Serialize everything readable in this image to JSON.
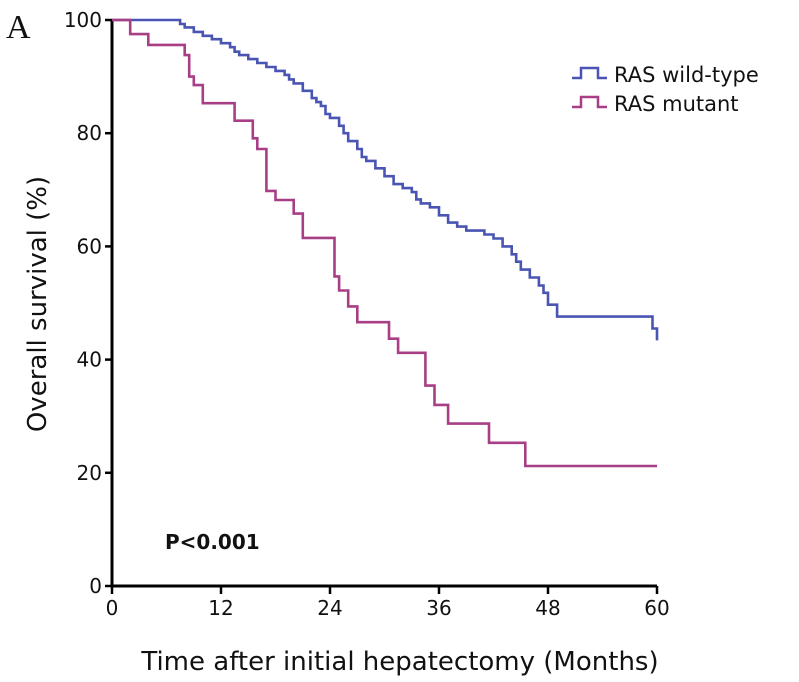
{
  "chart_data": {
    "type": "line",
    "step": true,
    "panel_label": "A",
    "xlabel": "Time after initial  hepatectomy (Months)",
    "ylabel": "Overall survival (%)",
    "xlim": [
      0,
      60
    ],
    "ylim": [
      0,
      100
    ],
    "xticks": [
      "0",
      "12",
      "24",
      "36",
      "48",
      "60"
    ],
    "yticks": [
      "0",
      "20",
      "40",
      "60",
      "80",
      "100"
    ],
    "grid": false,
    "legend_position": "top-right",
    "annotation": "P<0.001",
    "series": [
      {
        "name": "RAS wild-type",
        "color": "#4a55b3",
        "points": [
          [
            0,
            100
          ],
          [
            7,
            100
          ],
          [
            7.5,
            99.3
          ],
          [
            8,
            98.7
          ],
          [
            9,
            97.9
          ],
          [
            10,
            97.2
          ],
          [
            11,
            96.6
          ],
          [
            12,
            95.9
          ],
          [
            13,
            95.2
          ],
          [
            13.5,
            94.4
          ],
          [
            14,
            93.8
          ],
          [
            15,
            93.1
          ],
          [
            16,
            92.4
          ],
          [
            17,
            91.7
          ],
          [
            18,
            91
          ],
          [
            19,
            90.3
          ],
          [
            19.5,
            89.5
          ],
          [
            20,
            88.8
          ],
          [
            21,
            87.5
          ],
          [
            22,
            86.2
          ],
          [
            22.5,
            85.5
          ],
          [
            23,
            84.8
          ],
          [
            23.5,
            83.4
          ],
          [
            24,
            82.7
          ],
          [
            25,
            81.3
          ],
          [
            25.5,
            80
          ],
          [
            26,
            78.6
          ],
          [
            27,
            77.2
          ],
          [
            27.5,
            75.8
          ],
          [
            28,
            75.1
          ],
          [
            29,
            73.8
          ],
          [
            30,
            72.4
          ],
          [
            31,
            71
          ],
          [
            32,
            70.3
          ],
          [
            33,
            69.6
          ],
          [
            33.5,
            68.3
          ],
          [
            34,
            67.6
          ],
          [
            35,
            66.9
          ],
          [
            36,
            65.5
          ],
          [
            37,
            64.2
          ],
          [
            38,
            63.5
          ],
          [
            39,
            62.8
          ],
          [
            41,
            62.1
          ],
          [
            42,
            61.4
          ],
          [
            43,
            60
          ],
          [
            44,
            58.6
          ],
          [
            44.5,
            57.3
          ],
          [
            45,
            55.9
          ],
          [
            46,
            54.5
          ],
          [
            47,
            53.1
          ],
          [
            47.5,
            51.8
          ],
          [
            48,
            49.7
          ],
          [
            49,
            47.6
          ],
          [
            59,
            47.6
          ],
          [
            59.5,
            45.5
          ],
          [
            60,
            43.4
          ]
        ]
      },
      {
        "name": "RAS mutant",
        "color": "#a83f86",
        "points": [
          [
            0,
            100
          ],
          [
            2,
            97.5
          ],
          [
            4,
            95.6
          ],
          [
            8,
            93.8
          ],
          [
            8.5,
            90
          ],
          [
            9,
            88.5
          ],
          [
            10,
            85.3
          ],
          [
            13,
            85.3
          ],
          [
            13.5,
            82.2
          ],
          [
            15,
            82.2
          ],
          [
            15.5,
            79.1
          ],
          [
            16,
            77.2
          ],
          [
            17,
            69.8
          ],
          [
            18,
            68.2
          ],
          [
            20,
            65.8
          ],
          [
            21,
            61.5
          ],
          [
            24,
            61.5
          ],
          [
            24.5,
            54.7
          ],
          [
            25,
            52.2
          ],
          [
            26,
            49.4
          ],
          [
            27,
            46.6
          ],
          [
            30,
            46.6
          ],
          [
            30.5,
            43.7
          ],
          [
            31.5,
            41.2
          ],
          [
            34,
            41.2
          ],
          [
            34.5,
            35.4
          ],
          [
            35.5,
            32
          ],
          [
            37,
            28.7
          ],
          [
            41,
            28.7
          ],
          [
            41.5,
            25.3
          ],
          [
            45,
            25.3
          ],
          [
            45.5,
            21.2
          ],
          [
            60,
            21.2
          ]
        ]
      }
    ]
  }
}
